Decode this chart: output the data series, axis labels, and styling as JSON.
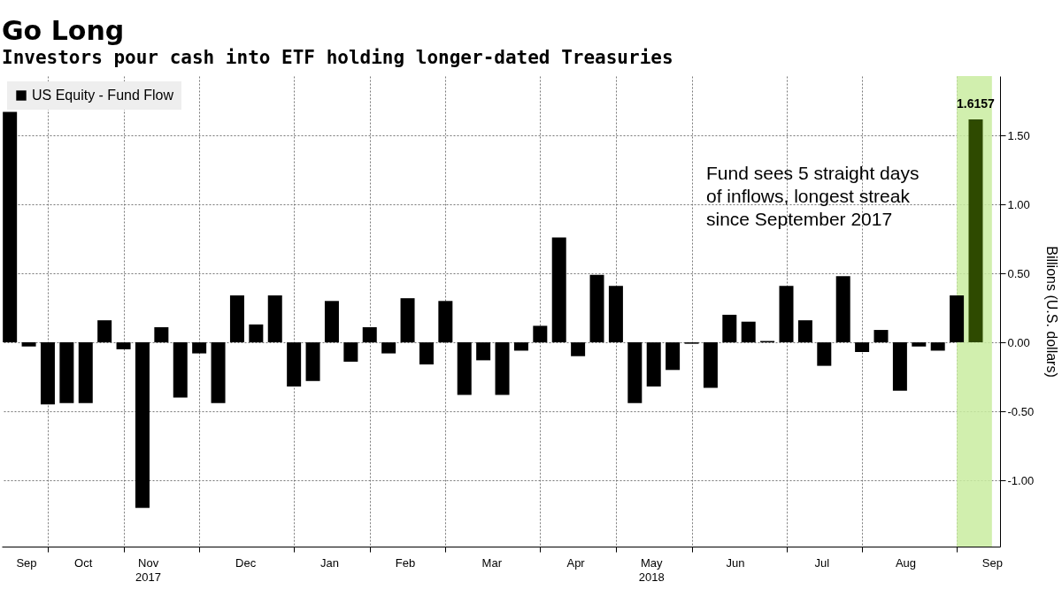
{
  "chart_data": {
    "type": "bar",
    "title": "Go Long",
    "subtitle": "Investors pour cash into ETF holding longer-dated Treasuries",
    "ylabel": "Billions (U.S. dollars)",
    "x": [
      "2017-09-22",
      "2017-09-29",
      "2017-10-06",
      "2017-10-13",
      "2017-10-20",
      "2017-10-27",
      "2017-11-03",
      "2017-11-10",
      "2017-11-17",
      "2017-11-24",
      "2017-12-01",
      "2017-12-08",
      "2017-12-15",
      "2017-12-22",
      "2017-12-29",
      "2018-01-05",
      "2018-01-12",
      "2018-01-19",
      "2018-01-26",
      "2018-02-02",
      "2018-02-09",
      "2018-02-16",
      "2018-02-23",
      "2018-03-02",
      "2018-03-09",
      "2018-03-16",
      "2018-03-23",
      "2018-03-30",
      "2018-04-06",
      "2018-04-13",
      "2018-04-20",
      "2018-04-27",
      "2018-05-04",
      "2018-05-11",
      "2018-05-18",
      "2018-05-25",
      "2018-06-01",
      "2018-06-08",
      "2018-06-15",
      "2018-06-22",
      "2018-06-29",
      "2018-07-06",
      "2018-07-13",
      "2018-07-20",
      "2018-07-27",
      "2018-08-03",
      "2018-08-10",
      "2018-08-17",
      "2018-08-24",
      "2018-08-31",
      "2018-09-07",
      "2018-09-14"
    ],
    "series": [
      {
        "name": "US Equity - Fund Flow",
        "color": "#000000",
        "values": [
          1.67,
          -0.03,
          -0.45,
          -0.44,
          -0.44,
          0.16,
          -0.05,
          -1.2,
          0.11,
          -0.4,
          -0.08,
          -0.44,
          0.34,
          0.13,
          0.34,
          -0.32,
          -0.28,
          0.3,
          -0.14,
          0.11,
          -0.08,
          0.32,
          -0.16,
          0.3,
          -0.38,
          -0.13,
          -0.38,
          -0.06,
          0.12,
          0.76,
          -0.1,
          0.49,
          0.41,
          -0.44,
          -0.32,
          -0.2,
          -0.01,
          -0.33,
          0.2,
          0.15,
          0.01,
          0.41,
          0.16,
          -0.17,
          0.48,
          -0.07,
          0.09,
          -0.35,
          -0.03,
          -0.06,
          0.34,
          1.6157
        ],
        "colors": [
          "#000000",
          "#000000",
          "#000000",
          "#000000",
          "#000000",
          "#000000",
          "#000000",
          "#000000",
          "#000000",
          "#000000",
          "#000000",
          "#000000",
          "#000000",
          "#000000",
          "#000000",
          "#000000",
          "#000000",
          "#000000",
          "#000000",
          "#000000",
          "#000000",
          "#000000",
          "#000000",
          "#000000",
          "#000000",
          "#000000",
          "#000000",
          "#000000",
          "#000000",
          "#000000",
          "#000000",
          "#000000",
          "#000000",
          "#000000",
          "#000000",
          "#000000",
          "#000000",
          "#000000",
          "#000000",
          "#000000",
          "#000000",
          "#000000",
          "#000000",
          "#000000",
          "#000000",
          "#000000",
          "#000000",
          "#000000",
          "#000000",
          "#000000",
          "#000000",
          "#2e4a00"
        ],
        "value_labels": [
          null,
          null,
          null,
          null,
          null,
          null,
          null,
          null,
          null,
          null,
          null,
          null,
          null,
          null,
          null,
          null,
          null,
          null,
          null,
          null,
          null,
          null,
          null,
          null,
          null,
          null,
          null,
          null,
          null,
          null,
          null,
          null,
          null,
          null,
          null,
          null,
          null,
          null,
          null,
          null,
          null,
          null,
          null,
          null,
          null,
          null,
          null,
          null,
          null,
          null,
          null,
          "1.6157"
        ]
      }
    ],
    "xlim": [
      "2017-09-19",
      "2018-09-23"
    ],
    "xticks": [
      {
        "value": "2017-09-28",
        "label": "Sep"
      },
      {
        "value": "2017-10-06",
        "label": null
      },
      {
        "value": "2017-10-19",
        "label": "Oct"
      },
      {
        "value": "2017-11-03",
        "label": null
      },
      {
        "value": "2017-11-12",
        "label": "Nov\n2017"
      },
      {
        "value": "2017-12-01",
        "label": null
      },
      {
        "value": "2017-12-18",
        "label": "Dec"
      },
      {
        "value": "2018-01-05",
        "label": null
      },
      {
        "value": "2018-01-18",
        "label": "Jan"
      },
      {
        "value": "2018-02-02",
        "label": null
      },
      {
        "value": "2018-02-15",
        "label": "Feb"
      },
      {
        "value": "2018-03-02",
        "label": null
      },
      {
        "value": "2018-03-19",
        "label": "Mar"
      },
      {
        "value": "2018-04-06",
        "label": null
      },
      {
        "value": "2018-04-19",
        "label": "Apr"
      },
      {
        "value": "2018-05-04",
        "label": null
      },
      {
        "value": "2018-05-17",
        "label": "May\n2018"
      },
      {
        "value": "2018-06-01",
        "label": null
      },
      {
        "value": "2018-06-17",
        "label": "Jun"
      },
      {
        "value": "2018-07-06",
        "label": null
      },
      {
        "value": "2018-07-19",
        "label": "Jul"
      },
      {
        "value": "2018-08-03",
        "label": null
      },
      {
        "value": "2018-08-19",
        "label": "Aug"
      },
      {
        "value": "2018-09-07",
        "label": null
      },
      {
        "value": "2018-09-20",
        "label": "Sep"
      }
    ],
    "ylim": [
      -1.48,
      1.93
    ],
    "yticks": [
      {
        "value": -1.0,
        "label": "-1.00"
      },
      {
        "value": -0.5,
        "label": "-0.50"
      },
      {
        "value": 0,
        "label": "0.00"
      },
      {
        "value": 0.5,
        "label": "0.50"
      },
      {
        "value": 1.0,
        "label": "1.00"
      },
      {
        "value": 1.5,
        "label": "1.50"
      }
    ],
    "bands": [
      {
        "axis": "x",
        "from": "2018-09-07",
        "to": "2018-09-20",
        "color": "#c9eca0"
      }
    ],
    "annotations": [
      "Fund sees 5 straight days of inflows, longest streak since September 2017"
    ],
    "grid": true,
    "legend": "top left"
  }
}
